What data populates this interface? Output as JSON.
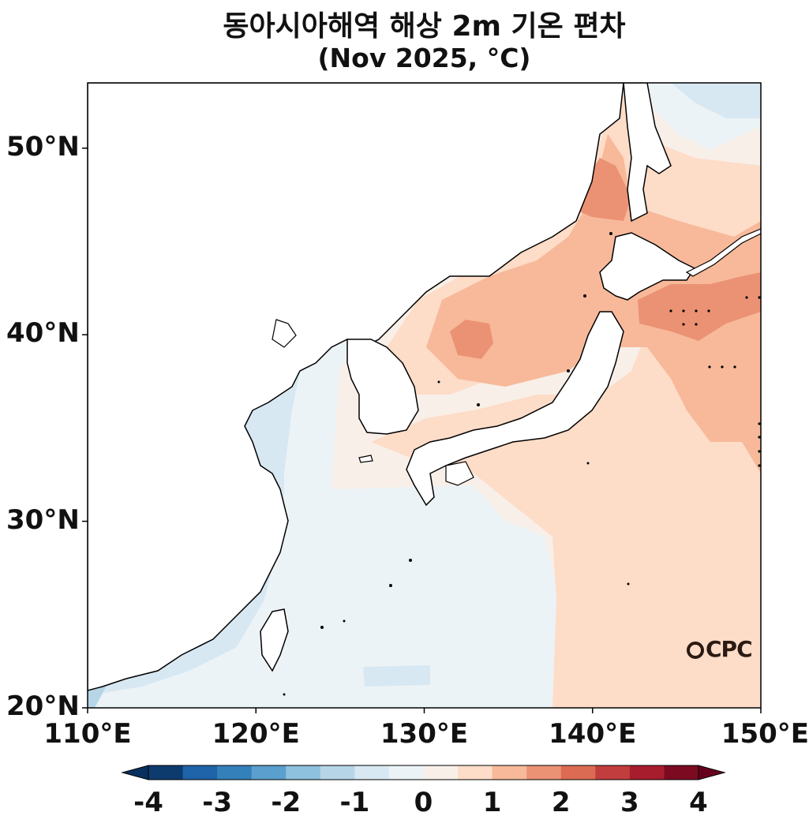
{
  "title": {
    "line1": "동아시아해역 해상 2m 기온 편차",
    "line2": "(Nov 2025, °C)"
  },
  "map": {
    "region": "East Asia seas",
    "lon_range": [
      110,
      150
    ],
    "lat_range": [
      20,
      53.5
    ],
    "lon_ticks": [
      "110°E",
      "120°E",
      "130°E",
      "140°E",
      "150°E"
    ],
    "lat_ticks": [
      "20°N",
      "30°N",
      "40°N",
      "50°N"
    ],
    "logo_text": "CPC",
    "field": "2m air temperature anomaly over ocean",
    "dominant_pattern": "near-zero to slightly negative west of Korea and over Yellow Sea/East China Sea; positive (1 to 2 °C) over East Sea and northwest Pacific"
  },
  "colorbar": {
    "ticks": [
      "-4",
      "-3",
      "-2",
      "-1",
      "0",
      "1",
      "2",
      "3",
      "4"
    ],
    "levels": [
      -4,
      -3.5,
      -3,
      -2.5,
      -2,
      -1.5,
      -1,
      -0.5,
      0,
      0.5,
      1,
      1.5,
      2,
      2.5,
      3,
      3.5,
      4
    ],
    "colors": [
      "#0d3b6e",
      "#1f63a8",
      "#3480bb",
      "#5a9fcd",
      "#8ec1dd",
      "#b6d6e8",
      "#d8e8f2",
      "#ecf3f6",
      "#f8efe8",
      "#fddcc8",
      "#f7b99a",
      "#ec9274",
      "#dc6b53",
      "#c23d3d",
      "#a81d2d",
      "#7c0b22"
    ],
    "extend": "both"
  }
}
